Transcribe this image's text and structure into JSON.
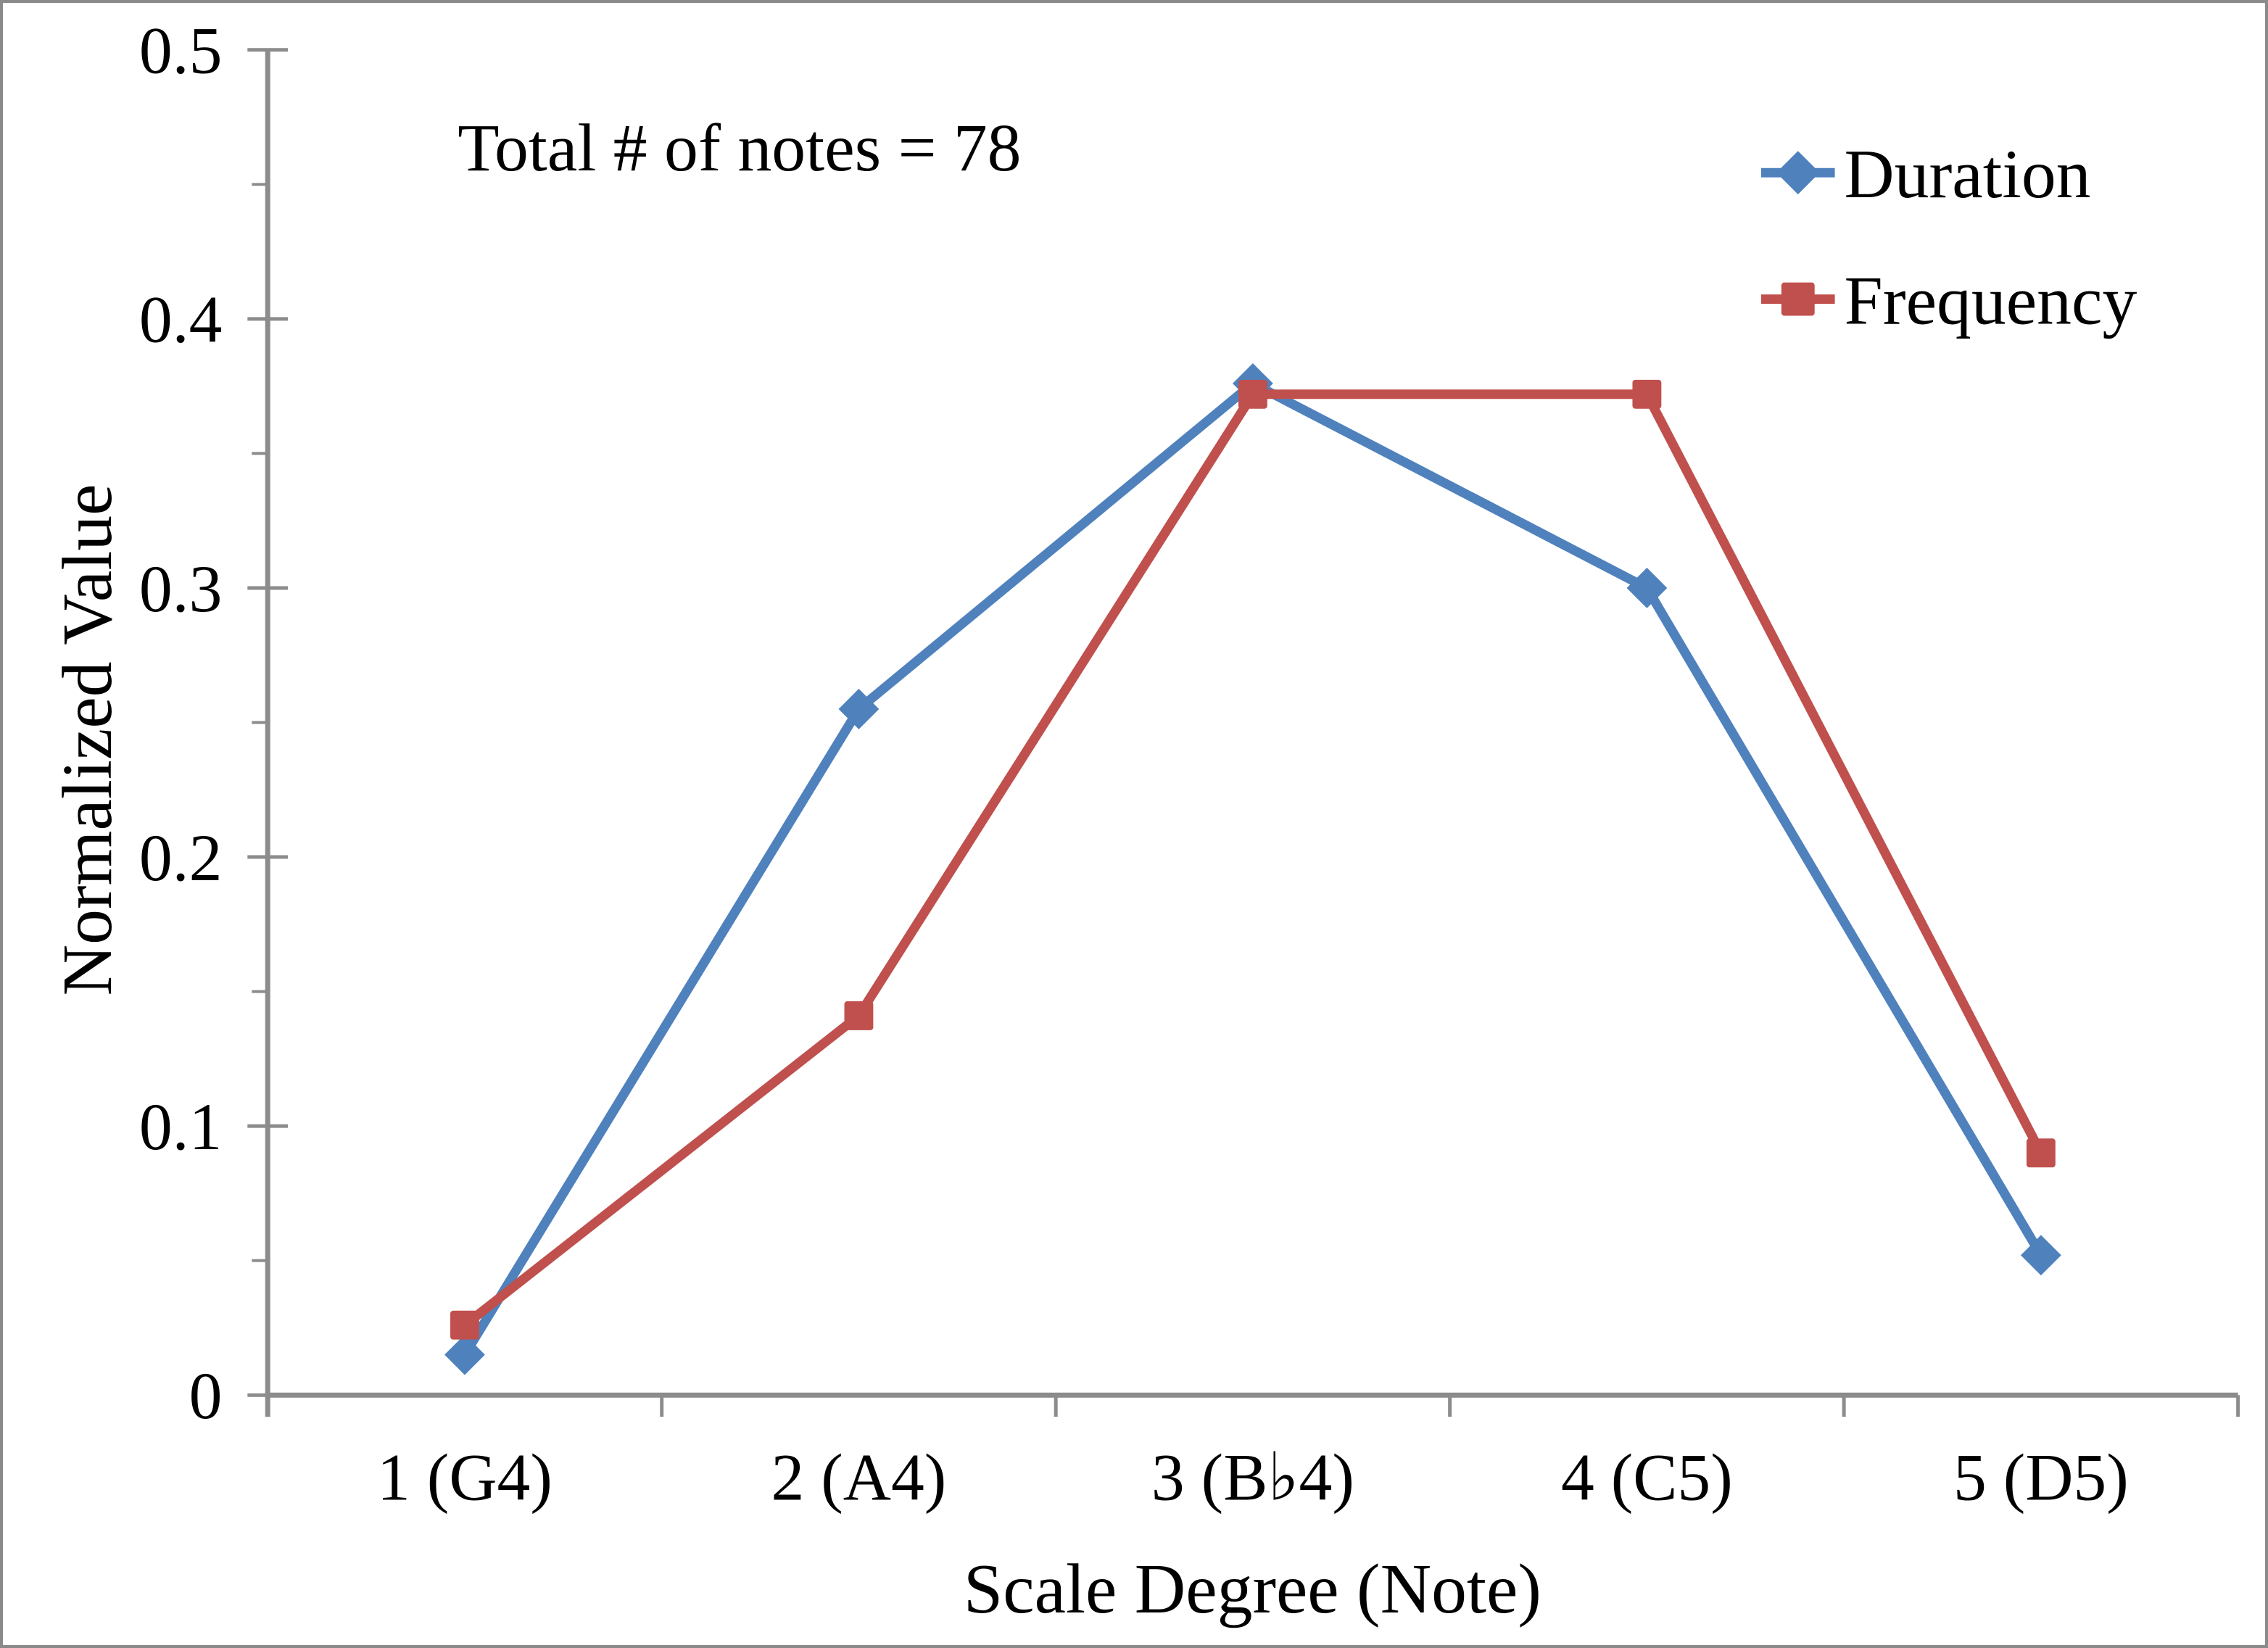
{
  "chart_data": {
    "type": "line",
    "title": "",
    "annotation": "Total # of notes = 78",
    "total_notes": 78,
    "xlabel": "Scale Degree (Note)",
    "ylabel": "Normalized Value",
    "categories": [
      "1 (G4)",
      "2 (A4)",
      "3 (B♭4)",
      "4 (C5)",
      "5 (D5)"
    ],
    "series": [
      {
        "name": "Duration",
        "marker": "diamond",
        "color": "#4F81BD",
        "values": [
          0.015,
          0.255,
          0.376,
          0.3,
          0.052
        ]
      },
      {
        "name": "Frequency",
        "marker": "square",
        "color": "#C0504D",
        "values": [
          0.026,
          0.141,
          0.372,
          0.372,
          0.09
        ]
      }
    ],
    "ylim": [
      0,
      0.5
    ],
    "y_major_step": 0.1,
    "y_minor_step": 0.05,
    "y_tick_labels": [
      "0",
      "0.1",
      "0.2",
      "0.3",
      "0.4",
      "0.5"
    ],
    "grid": "off",
    "legend_position": "top-right",
    "axis_color": "#8C8C8C",
    "text_color": "#000000",
    "background_color": "#FFFFFF",
    "border_color": "#8A8A8A"
  }
}
